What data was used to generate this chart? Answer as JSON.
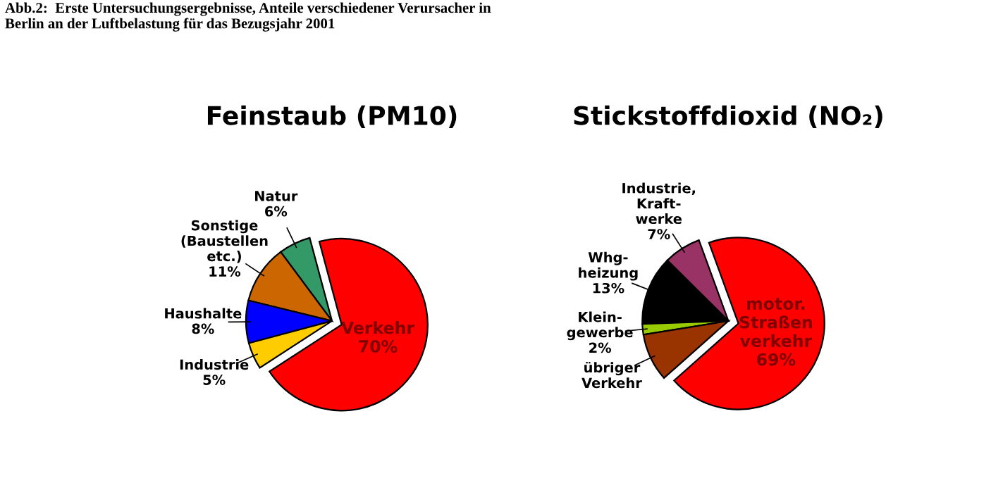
{
  "chart_data": [
    {
      "type": "pie",
      "title": "Feinstaub (PM10)",
      "annotations": [
        "Abb.2:  Erste Untersuchungsergebnisse, Anteile verschiedener Verursacher in\nBerlin an der Luftbelastung für das Bezugsjahr 2001"
      ],
      "categories": [
        "Verkehr",
        "Natur",
        "Sonstige\n(Baustellen\netc.)",
        "Haushalte",
        "Industrie"
      ],
      "values": [
        70,
        6,
        11,
        8,
        5
      ],
      "value_labels": [
        "70%",
        "6%",
        "11%",
        "8%",
        "5%"
      ],
      "colors": [
        "#ff0000",
        "#339966",
        "#cc6600",
        "#0000ff",
        "#ffcc00"
      ]
    },
    {
      "type": "pie",
      "title": "Stickstoffdioxid (NO₂)",
      "categories": [
        "motor.\nStraßen\nverkehr",
        "Industrie,\nKraft-\nwerke",
        "Whg-\nheizung",
        "Klein-\ngewerbe",
        "übriger\nVerkehr"
      ],
      "values": [
        69,
        7,
        13,
        2,
        9
      ],
      "value_labels": [
        "69%",
        "7%",
        "13%",
        "2%",
        null
      ],
      "colors": [
        "#ff0000",
        "#993366",
        "#000000",
        "#99cc00",
        "#993300"
      ]
    }
  ]
}
